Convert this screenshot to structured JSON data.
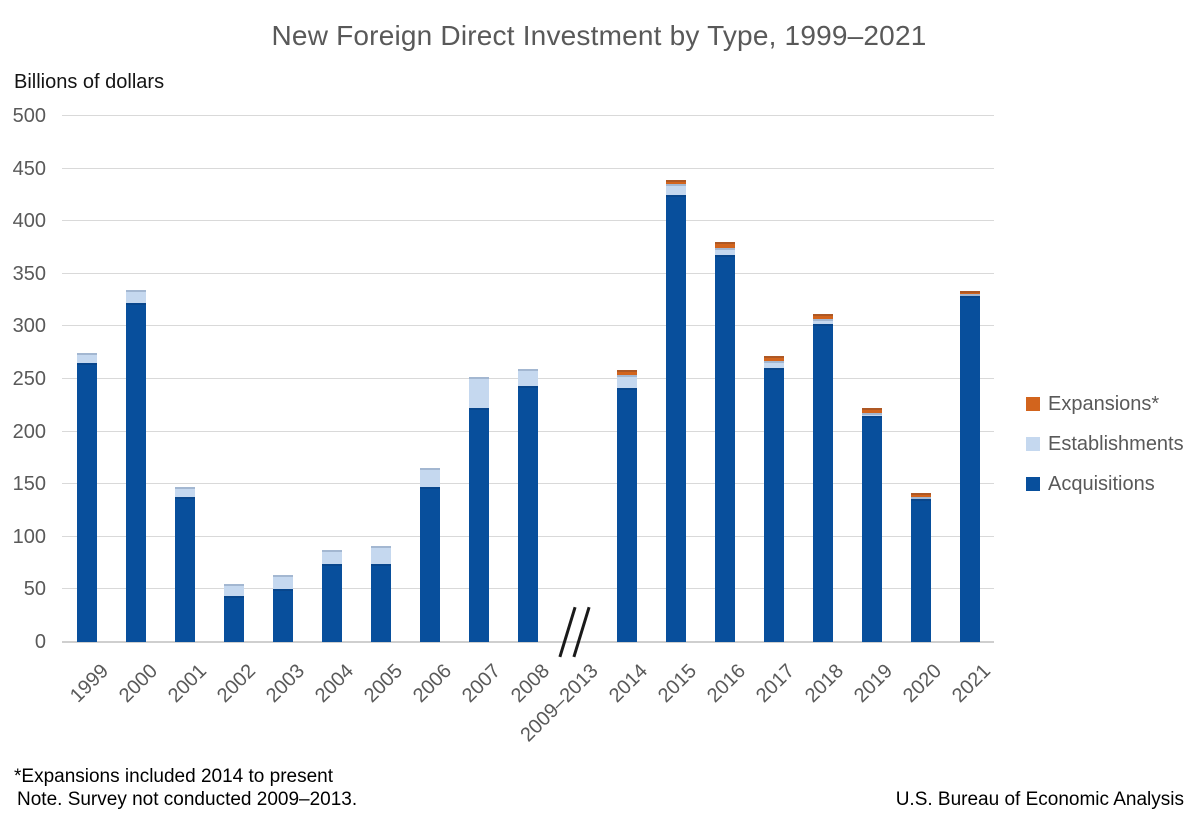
{
  "chart_data": {
    "type": "bar",
    "stacked": true,
    "title": "New Foreign Direct Investment by Type, 1999–2021",
    "ylabel": "Billions of dollars",
    "xlabel": "",
    "ylim": [
      0,
      500
    ],
    "ytick_step": 50,
    "grid": "horizontal",
    "legend_position": "right",
    "axis_break_label": "2009–2013",
    "categories": [
      "1999",
      "2000",
      "2001",
      "2002",
      "2003",
      "2004",
      "2005",
      "2006",
      "2007",
      "2008",
      "2009–2013",
      "2014",
      "2015",
      "2016",
      "2017",
      "2018",
      "2019",
      "2020",
      "2021"
    ],
    "series": [
      {
        "name": "Acquisitions",
        "color": "#084f9c",
        "values": [
          265,
          322,
          138,
          44,
          50,
          74,
          74,
          147,
          222,
          243,
          null,
          241,
          425,
          368,
          260,
          302,
          215,
          136,
          329
        ]
      },
      {
        "name": "Establishments",
        "color": "#c5d8ef",
        "values": [
          10,
          13,
          9,
          11,
          14,
          13,
          17,
          18,
          30,
          17,
          null,
          13,
          10,
          7,
          7,
          5,
          3,
          2,
          2
        ]
      },
      {
        "name": "Expansions*",
        "color": "#d2641d",
        "values": [
          0,
          0,
          0,
          0,
          0,
          0,
          0,
          0,
          0,
          0,
          null,
          5,
          4,
          5,
          5,
          5,
          4,
          4,
          3
        ]
      }
    ]
  },
  "legend": {
    "items": [
      {
        "label": "Expansions*",
        "color": "#d2641d"
      },
      {
        "label": "Establishments",
        "color": "#c5d8ef"
      },
      {
        "label": "Acquisitions",
        "color": "#084f9c"
      }
    ]
  },
  "footnotes": {
    "expansions_note": "*Expansions included 2014 to present",
    "survey_note": "Note. Survey not conducted 2009–2013.",
    "source": "U.S. Bureau of Economic Analysis"
  }
}
